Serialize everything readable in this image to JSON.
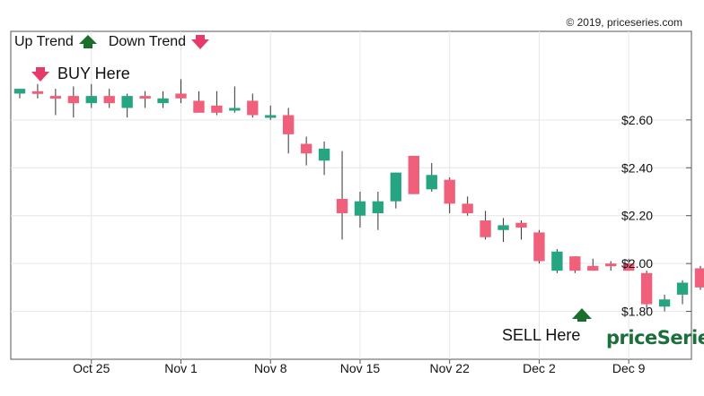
{
  "copyright": "© 2019, priceseries.com",
  "legend": {
    "up_label": "Up Trend",
    "down_label": "Down Trend"
  },
  "annotations": {
    "buy_label": "BUY Here",
    "sell_label": "SELL Here"
  },
  "brand": "priceSeries",
  "colors": {
    "up": "#26a583",
    "down": "#f0607b",
    "arrow_up": "#1a6e2e",
    "arrow_down": "#e63b6a",
    "grid": "#e6e6e6",
    "frame": "#555555"
  },
  "chart_data": {
    "type": "candlestick",
    "title": "",
    "xlabel": "",
    "ylabel": "",
    "ylim": [
      1.6,
      2.97
    ],
    "grid": true,
    "legend_position": "top-left",
    "y_ticks": [
      1.8,
      2.0,
      2.2,
      2.4,
      2.6
    ],
    "y_tick_labels": [
      "$1.80",
      "$2.00",
      "$2.20",
      "$2.40",
      "$2.60"
    ],
    "x_ticks": [
      5,
      10,
      15,
      20,
      25,
      30,
      35
    ],
    "x_tick_labels": [
      "Oct 25",
      "Nov 1",
      "Nov 8",
      "Nov 15",
      "Nov 22",
      "Dec 2",
      "Dec 9"
    ],
    "x_range": [
      0.5,
      38.5
    ],
    "candles": [
      {
        "o": 2.71,
        "h": 2.73,
        "l": 2.69,
        "c": 2.73
      },
      {
        "o": 2.72,
        "h": 2.75,
        "l": 2.69,
        "c": 2.71
      },
      {
        "o": 2.7,
        "h": 2.73,
        "l": 2.62,
        "c": 2.69
      },
      {
        "o": 2.7,
        "h": 2.74,
        "l": 2.61,
        "c": 2.67
      },
      {
        "o": 2.67,
        "h": 2.75,
        "l": 2.65,
        "c": 2.7
      },
      {
        "o": 2.7,
        "h": 2.73,
        "l": 2.65,
        "c": 2.67
      },
      {
        "o": 2.65,
        "h": 2.71,
        "l": 2.61,
        "c": 2.7
      },
      {
        "o": 2.7,
        "h": 2.72,
        "l": 2.65,
        "c": 2.69
      },
      {
        "o": 2.67,
        "h": 2.72,
        "l": 2.65,
        "c": 2.69
      },
      {
        "o": 2.71,
        "h": 2.77,
        "l": 2.67,
        "c": 2.69
      },
      {
        "o": 2.68,
        "h": 2.72,
        "l": 2.63,
        "c": 2.63
      },
      {
        "o": 2.66,
        "h": 2.72,
        "l": 2.62,
        "c": 2.63
      },
      {
        "o": 2.64,
        "h": 2.74,
        "l": 2.63,
        "c": 2.65
      },
      {
        "o": 2.68,
        "h": 2.71,
        "l": 2.61,
        "c": 2.62
      },
      {
        "o": 2.61,
        "h": 2.66,
        "l": 2.6,
        "c": 2.62
      },
      {
        "o": 2.62,
        "h": 2.65,
        "l": 2.46,
        "c": 2.54
      },
      {
        "o": 2.5,
        "h": 2.53,
        "l": 2.41,
        "c": 2.46
      },
      {
        "o": 2.43,
        "h": 2.51,
        "l": 2.37,
        "c": 2.48
      },
      {
        "o": 2.27,
        "h": 2.47,
        "l": 2.1,
        "c": 2.21
      },
      {
        "o": 2.2,
        "h": 2.3,
        "l": 2.15,
        "c": 2.26
      },
      {
        "o": 2.21,
        "h": 2.3,
        "l": 2.14,
        "c": 2.26
      },
      {
        "o": 2.26,
        "h": 2.38,
        "l": 2.23,
        "c": 2.38
      },
      {
        "o": 2.45,
        "h": 2.45,
        "l": 2.29,
        "c": 2.29
      },
      {
        "o": 2.31,
        "h": 2.42,
        "l": 2.3,
        "c": 2.37
      },
      {
        "o": 2.35,
        "h": 2.36,
        "l": 2.21,
        "c": 2.25
      },
      {
        "o": 2.25,
        "h": 2.28,
        "l": 2.2,
        "c": 2.21
      },
      {
        "o": 2.18,
        "h": 2.22,
        "l": 2.1,
        "c": 2.11
      },
      {
        "o": 2.14,
        "h": 2.19,
        "l": 2.09,
        "c": 2.16
      },
      {
        "o": 2.17,
        "h": 2.18,
        "l": 2.1,
        "c": 2.15
      },
      {
        "o": 2.13,
        "h": 2.14,
        "l": 2.0,
        "c": 2.01
      },
      {
        "o": 1.97,
        "h": 2.06,
        "l": 1.96,
        "c": 2.05
      },
      {
        "o": 2.03,
        "h": 2.03,
        "l": 1.96,
        "c": 1.97
      },
      {
        "o": 1.99,
        "h": 2.02,
        "l": 1.97,
        "c": 1.97
      },
      {
        "o": 2.0,
        "h": 2.01,
        "l": 1.97,
        "c": 1.99
      },
      {
        "o": 2.0,
        "h": 2.02,
        "l": 1.97,
        "c": 1.97
      },
      {
        "o": 1.96,
        "h": 1.97,
        "l": 1.81,
        "c": 1.83
      },
      {
        "o": 1.82,
        "h": 1.87,
        "l": 1.8,
        "c": 1.85
      },
      {
        "o": 1.87,
        "h": 1.93,
        "l": 1.83,
        "c": 1.92
      },
      {
        "o": 1.98,
        "h": 1.99,
        "l": 1.89,
        "c": 1.9
      }
    ]
  }
}
